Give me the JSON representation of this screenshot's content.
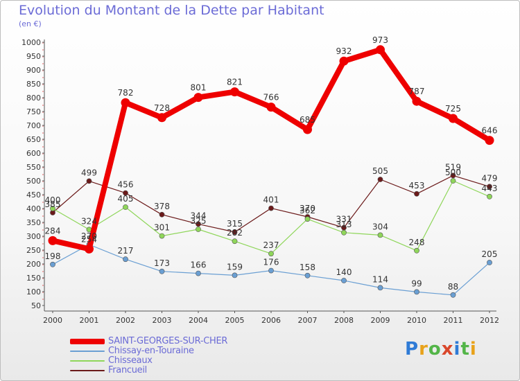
{
  "title": "Evolution du Montant de la Dette par Habitant",
  "unit": "(en €)",
  "logo": "Proxiti",
  "chart_data": {
    "type": "line",
    "title": "Evolution du Montant de la Dette par Habitant",
    "ylabel": "(en €)",
    "xlabel": "",
    "ylim": [
      50,
      1000
    ],
    "yticks": [
      50,
      100,
      150,
      200,
      250,
      300,
      350,
      400,
      450,
      500,
      550,
      600,
      650,
      700,
      750,
      800,
      850,
      900,
      950,
      1000
    ],
    "grid": false,
    "legend_position": "bottom-left",
    "categories": [
      "2000",
      "2001",
      "2002",
      "2003",
      "2004",
      "2005",
      "2006",
      "2007",
      "2008",
      "2009",
      "2010",
      "2011",
      "2012"
    ],
    "series": [
      {
        "name": "Francueil",
        "color": "#6b1a1a",
        "width": 1.2,
        "values": [
          385,
          499,
          456,
          378,
          344,
          315,
          401,
          370,
          331,
          505,
          453,
          519,
          479
        ]
      },
      {
        "name": "Chisseaux",
        "color": "#8fd65a",
        "width": 1.2,
        "values": [
          400,
          324,
          405,
          301,
          325,
          282,
          237,
          362,
          313,
          304,
          248,
          500,
          443
        ]
      },
      {
        "name": "Chissay-en-Touraine",
        "color": "#6a9fd3",
        "width": 1.2,
        "values": [
          198,
          270,
          217,
          173,
          166,
          159,
          176,
          158,
          140,
          114,
          99,
          88,
          205
        ]
      },
      {
        "name": "SAINT-GEORGES-SUR-CHER",
        "color": "#ee0000",
        "width": 8,
        "values": [
          284,
          254,
          782,
          728,
          801,
          821,
          766,
          685,
          932,
          973,
          787,
          725,
          646
        ]
      }
    ]
  }
}
